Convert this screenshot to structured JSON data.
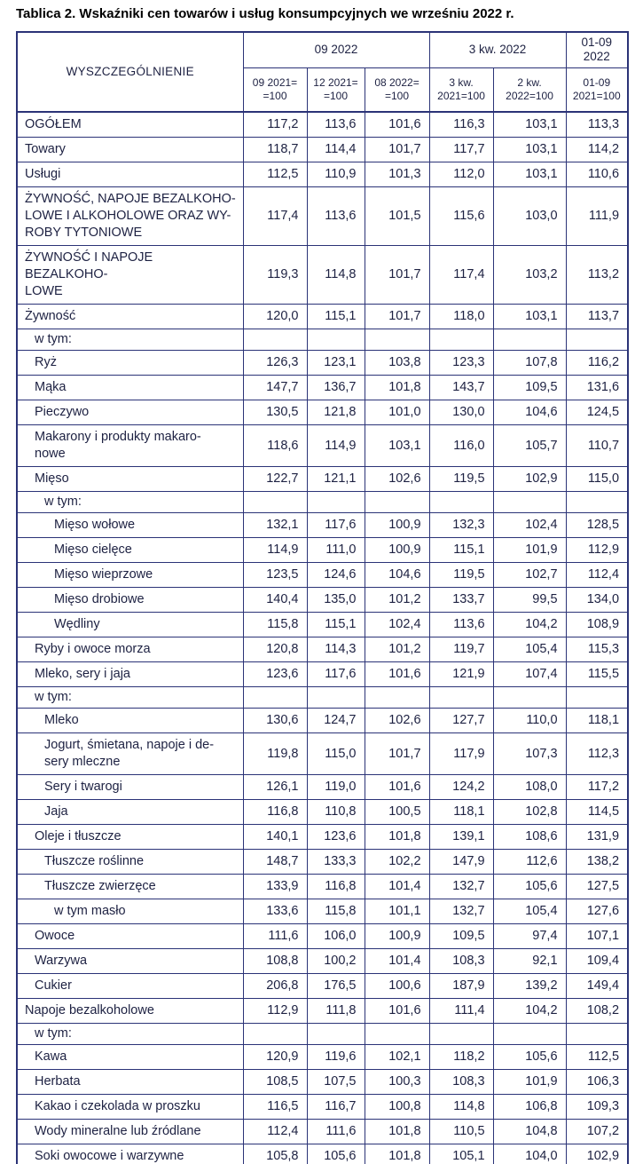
{
  "title": "Tablica 2. Wskaźniki cen towarów i usług konsumpcyjnych we wrześniu 2022 r.",
  "colors": {
    "table_border": "#2b3377",
    "table_text": "#1d2142",
    "title_text": "#000000",
    "background": "#ffffff"
  },
  "table": {
    "stub_header": "WYSZCZEGÓLNIENIE",
    "col_groups": [
      {
        "label": "09 2022",
        "span": 3
      },
      {
        "label": "3 kw. 2022",
        "span": 2
      },
      {
        "label": "01-09\n2022",
        "span": 1
      }
    ],
    "sub_headers": [
      "09 2021=\n=100",
      "12 2021=\n=100",
      "08 2022=\n=100",
      "3 kw.\n2021=100",
      "2 kw.\n2022=100",
      "01-09\n2021=100"
    ],
    "rows": [
      {
        "label": "OGÓŁEM",
        "indent": 0,
        "values": [
          "117,2",
          "113,6",
          "101,6",
          "116,3",
          "103,1",
          "113,3"
        ]
      },
      {
        "label": "Towary",
        "indent": 0,
        "values": [
          "118,7",
          "114,4",
          "101,7",
          "117,7",
          "103,1",
          "114,2"
        ]
      },
      {
        "label": "Usługi",
        "indent": 0,
        "values": [
          "112,5",
          "110,9",
          "101,3",
          "112,0",
          "103,1",
          "110,6"
        ]
      },
      {
        "label": "ŻYWNOŚĆ, NAPOJE BEZALKOHO-\nLOWE I ALKOHOLOWE ORAZ WY-\nROBY TYTONIOWE",
        "indent": 0,
        "values": [
          "117,4",
          "113,6",
          "101,5",
          "115,6",
          "103,0",
          "111,9"
        ]
      },
      {
        "label": "ŻYWNOŚĆ I NAPOJE BEZALKOHO-\nLOWE",
        "indent": 0,
        "values": [
          "119,3",
          "114,8",
          "101,7",
          "117,4",
          "103,2",
          "113,2"
        ]
      },
      {
        "label": "Żywność",
        "indent": 0,
        "values": [
          "120,0",
          "115,1",
          "101,7",
          "118,0",
          "103,1",
          "113,7"
        ]
      },
      {
        "label": "w tym:",
        "indent": 1,
        "note": true,
        "values": [
          "",
          "",
          "",
          "",
          "",
          ""
        ]
      },
      {
        "label": "Ryż",
        "indent": 1,
        "values": [
          "126,3",
          "123,1",
          "103,8",
          "123,3",
          "107,8",
          "116,2"
        ]
      },
      {
        "label": "Mąka",
        "indent": 1,
        "values": [
          "147,7",
          "136,7",
          "101,8",
          "143,7",
          "109,5",
          "131,6"
        ]
      },
      {
        "label": "Pieczywo",
        "indent": 1,
        "values": [
          "130,5",
          "121,8",
          "101,0",
          "130,0",
          "104,6",
          "124,5"
        ]
      },
      {
        "label": "Makarony i produkty makaro-\nnowe",
        "indent": 1,
        "values": [
          "118,6",
          "114,9",
          "103,1",
          "116,0",
          "105,7",
          "110,7"
        ]
      },
      {
        "label": "Mięso",
        "indent": 1,
        "values": [
          "122,7",
          "121,1",
          "102,6",
          "119,5",
          "102,9",
          "115,0"
        ]
      },
      {
        "label": "w tym:",
        "indent": 2,
        "note": true,
        "values": [
          "",
          "",
          "",
          "",
          "",
          ""
        ]
      },
      {
        "label": "Mięso wołowe",
        "indent": 3,
        "values": [
          "132,1",
          "117,6",
          "100,9",
          "132,3",
          "102,4",
          "128,5"
        ]
      },
      {
        "label": "Mięso cielęce",
        "indent": 3,
        "values": [
          "114,9",
          "111,0",
          "100,9",
          "115,1",
          "101,9",
          "112,9"
        ]
      },
      {
        "label": "Mięso wieprzowe",
        "indent": 3,
        "values": [
          "123,5",
          "124,6",
          "104,6",
          "119,5",
          "102,7",
          "112,4"
        ]
      },
      {
        "label": "Mięso drobiowe",
        "indent": 3,
        "values": [
          "140,4",
          "135,0",
          "101,2",
          "133,7",
          "99,5",
          "134,0"
        ]
      },
      {
        "label": "Wędliny",
        "indent": 3,
        "values": [
          "115,8",
          "115,1",
          "102,4",
          "113,6",
          "104,2",
          "108,9"
        ]
      },
      {
        "label": "Ryby i owoce morza",
        "indent": 1,
        "values": [
          "120,8",
          "114,3",
          "101,2",
          "119,7",
          "105,4",
          "115,3"
        ]
      },
      {
        "label": "Mleko, sery i jaja",
        "indent": 1,
        "values": [
          "123,6",
          "117,6",
          "101,6",
          "121,9",
          "107,4",
          "115,5"
        ]
      },
      {
        "label": "w tym:",
        "indent": 1,
        "note": true,
        "values": [
          "",
          "",
          "",
          "",
          "",
          ""
        ]
      },
      {
        "label": "Mleko",
        "indent": 2,
        "values": [
          "130,6",
          "124,7",
          "102,6",
          "127,7",
          "110,0",
          "118,1"
        ]
      },
      {
        "label": "Jogurt, śmietana, napoje i de-\nsery mleczne",
        "indent": 2,
        "values": [
          "119,8",
          "115,0",
          "101,7",
          "117,9",
          "107,3",
          "112,3"
        ]
      },
      {
        "label": "Sery i twarogi",
        "indent": 2,
        "values": [
          "126,1",
          "119,0",
          "101,6",
          "124,2",
          "108,0",
          "117,2"
        ]
      },
      {
        "label": "Jaja",
        "indent": 2,
        "values": [
          "116,8",
          "110,8",
          "100,5",
          "118,1",
          "102,8",
          "114,5"
        ]
      },
      {
        "label": "Oleje i tłuszcze",
        "indent": 1,
        "values": [
          "140,1",
          "123,6",
          "101,8",
          "139,1",
          "108,6",
          "131,9"
        ]
      },
      {
        "label": "Tłuszcze roślinne",
        "indent": 2,
        "values": [
          "148,7",
          "133,3",
          "102,2",
          "147,9",
          "112,6",
          "138,2"
        ]
      },
      {
        "label": "Tłuszcze zwierzęce",
        "indent": 2,
        "values": [
          "133,9",
          "116,8",
          "101,4",
          "132,7",
          "105,6",
          "127,5"
        ]
      },
      {
        "label": "w tym masło",
        "indent": 3,
        "values": [
          "133,6",
          "115,8",
          "101,1",
          "132,7",
          "105,4",
          "127,6"
        ]
      },
      {
        "label": "Owoce",
        "indent": 1,
        "values": [
          "111,6",
          "106,0",
          "100,9",
          "109,5",
          "97,4",
          "107,1"
        ]
      },
      {
        "label": "Warzywa",
        "indent": 1,
        "values": [
          "108,8",
          "100,2",
          "101,4",
          "108,3",
          "92,1",
          "109,4"
        ]
      },
      {
        "label": "Cukier",
        "indent": 1,
        "values": [
          "206,8",
          "176,5",
          "100,6",
          "187,9",
          "139,2",
          "149,4"
        ]
      },
      {
        "label": "Napoje bezalkoholowe",
        "indent": 0,
        "values": [
          "112,9",
          "111,8",
          "101,6",
          "111,4",
          "104,2",
          "108,2"
        ]
      },
      {
        "label": "w tym:",
        "indent": 1,
        "note": true,
        "values": [
          "",
          "",
          "",
          "",
          "",
          ""
        ]
      },
      {
        "label": "Kawa",
        "indent": 1,
        "values": [
          "120,9",
          "119,6",
          "102,1",
          "118,2",
          "105,6",
          "112,5"
        ]
      },
      {
        "label": "Herbata",
        "indent": 1,
        "values": [
          "108,5",
          "107,5",
          "100,3",
          "108,3",
          "101,9",
          "106,3"
        ]
      },
      {
        "label": "Kakao i czekolada w proszku",
        "indent": 1,
        "values": [
          "116,5",
          "116,7",
          "100,8",
          "114,8",
          "106,8",
          "109,3"
        ]
      },
      {
        "label": "Wody mineralne lub źródlane",
        "indent": 1,
        "values": [
          "112,4",
          "111,6",
          "101,8",
          "110,5",
          "104,8",
          "107,2"
        ]
      },
      {
        "label": "Soki owocowe i warzywne",
        "indent": 1,
        "values": [
          "105,8",
          "105,6",
          "101,8",
          "105,1",
          "104,0",
          "102,9"
        ]
      },
      {
        "label": "",
        "indent": 0,
        "partial": true,
        "values": [
          "",
          "",
          "",
          "",
          "",
          ""
        ]
      }
    ]
  }
}
